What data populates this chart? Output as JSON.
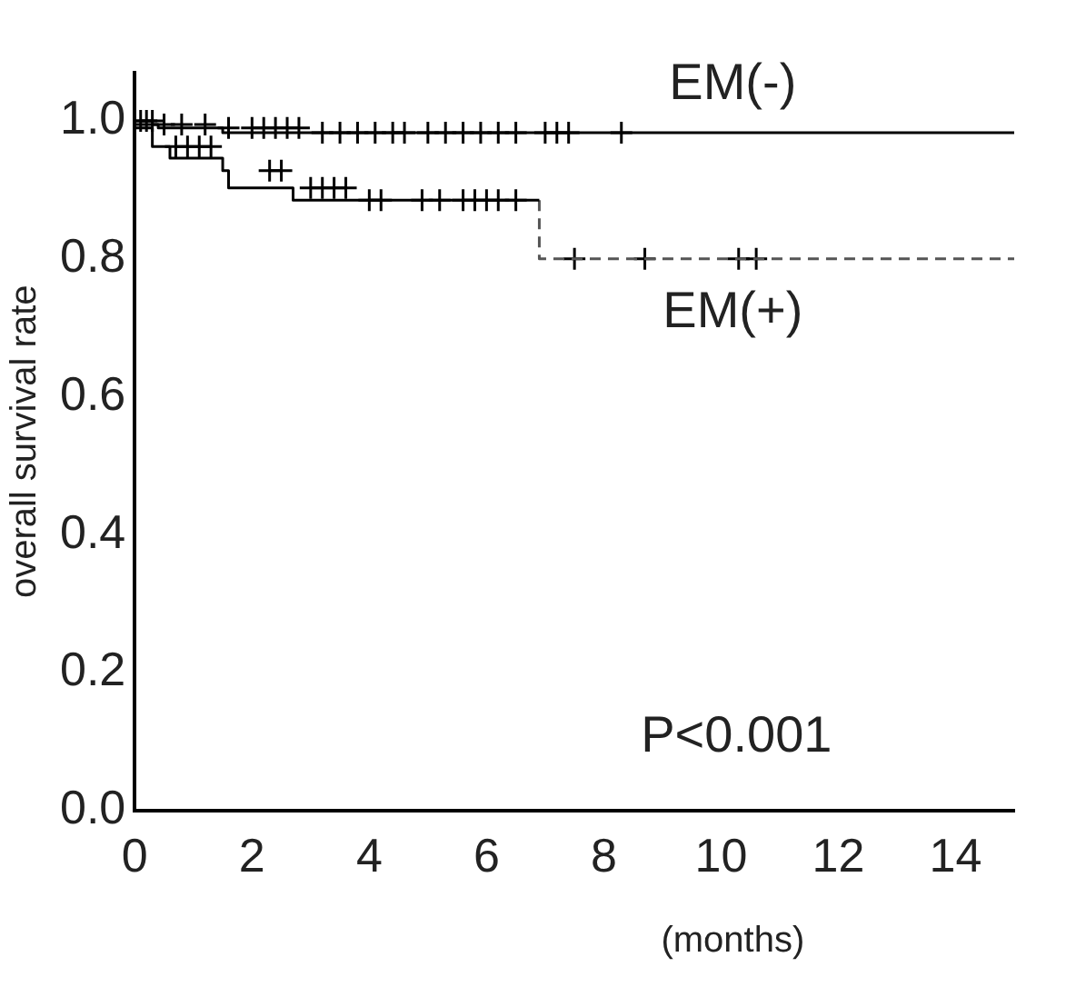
{
  "chart_data": {
    "type": "step",
    "xlabel": "(months)",
    "ylabel": "overall survival rate",
    "xlim": [
      0,
      15
    ],
    "xticks": [
      0,
      2,
      4,
      6,
      8,
      10,
      12,
      14
    ],
    "ylim": [
      0,
      1.07
    ],
    "yticks": [
      {
        "value": 0,
        "label": "0.0"
      },
      {
        "value": 0.2,
        "label": "0.2"
      },
      {
        "value": 0.4,
        "label": "0.4"
      },
      {
        "value": 0.6,
        "label": "0.6"
      },
      {
        "value": 0.8,
        "label": "0.8"
      },
      {
        "value": 1,
        "label": "1.0"
      }
    ],
    "grid": false,
    "legend": false,
    "series": [
      {
        "name": "EM(-)",
        "color": "#000000",
        "line_style": "solid",
        "marker": "none",
        "x": [
          0,
          0.4,
          1.5,
          3.0,
          15
        ],
        "values": [
          1.0,
          0.995,
          0.99,
          0.983,
          0.983
        ]
      },
      {
        "name": "EM(+)",
        "color": "#000000",
        "line_style": "solid",
        "marker": "none",
        "x": [
          0,
          0.3,
          0.6,
          1.5,
          1.6,
          2.7,
          3.8,
          6.9
        ],
        "values": [
          1.0,
          0.99,
          0.963,
          0.946,
          0.928,
          0.903,
          0.885,
          0.885
        ]
      },
      {
        "color": "#555555",
        "line_style": "dashed",
        "marker": "none",
        "x": [
          6.9,
          7.1,
          15
        ],
        "values": [
          0.885,
          0.8,
          0.8
        ]
      },
      {
        "type": "scatter",
        "color": "#000000",
        "marker": "cross",
        "x": [
          0.1,
          0.2,
          0.3,
          0.5,
          0.8,
          1.2,
          1.6,
          2.0,
          2.2,
          2.4,
          2.6,
          2.8,
          3.2,
          3.5,
          3.8,
          4.1,
          4.4,
          4.6,
          5.0,
          5.3,
          5.6,
          5.9,
          6.2,
          6.5,
          7.0,
          7.2,
          7.4,
          8.3
        ],
        "values": [
          1.0,
          1.0,
          1.0,
          0.995,
          0.995,
          0.995,
          0.99,
          0.99,
          0.99,
          0.99,
          0.99,
          0.99,
          0.983,
          0.983,
          0.983,
          0.983,
          0.983,
          0.983,
          0.983,
          0.983,
          0.983,
          0.983,
          0.983,
          0.983,
          0.983,
          0.983,
          0.983,
          0.983
        ]
      },
      {
        "type": "scatter",
        "color": "#000000",
        "marker": "cross",
        "x": [
          0.7,
          0.9,
          1.1,
          1.3,
          2.3,
          2.5,
          3.0,
          3.2,
          3.4,
          3.6,
          4.0,
          4.2,
          4.9,
          5.2,
          5.6,
          5.8,
          6.0,
          6.2,
          6.5,
          7.5,
          8.7,
          10.3,
          10.6
        ],
        "values": [
          0.963,
          0.963,
          0.963,
          0.963,
          0.928,
          0.928,
          0.903,
          0.903,
          0.903,
          0.903,
          0.885,
          0.885,
          0.885,
          0.885,
          0.885,
          0.885,
          0.885,
          0.885,
          0.885,
          0.8,
          0.8,
          0.8,
          0.8
        ]
      }
    ],
    "annotations": [
      "P<0.001"
    ]
  }
}
